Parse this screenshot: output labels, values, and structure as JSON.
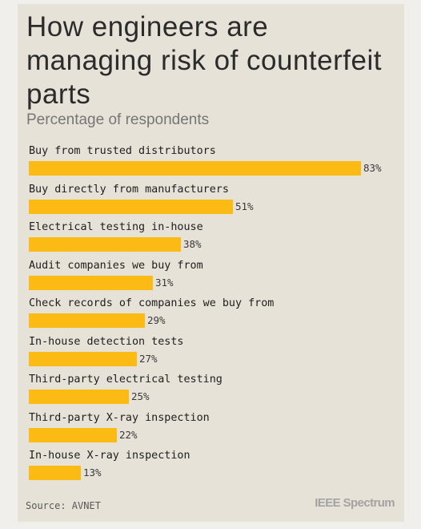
{
  "title": "How engineers are managing risk of counterfeit parts",
  "subtitle": "Percentage of respondents",
  "source": "Source: AVNET",
  "logo": "IEEE Spectrum",
  "colors": {
    "bar": "#fbba14",
    "background": "#e6e2d7"
  },
  "chart_data": {
    "type": "bar",
    "orientation": "horizontal",
    "title": "How engineers are managing risk of counterfeit parts",
    "subtitle": "Percentage of respondents",
    "categories": [
      "Buy from trusted distributors",
      "Buy directly from manufacturers",
      "Electrical testing in-house",
      "Audit companies we buy from",
      "Check records of companies we buy from",
      "In-house detection tests",
      "Third-party electrical testing",
      "Third-party X-ray inspection",
      "In-house X-ray inspection"
    ],
    "values": [
      83,
      51,
      38,
      31,
      29,
      27,
      25,
      22,
      13
    ],
    "value_labels": [
      "83%",
      "51%",
      "38%",
      "31%",
      "29%",
      "27%",
      "25%",
      "22%",
      "13%"
    ],
    "unit": "%",
    "xlim": [
      0,
      100
    ],
    "grid": false,
    "legend": "none"
  }
}
